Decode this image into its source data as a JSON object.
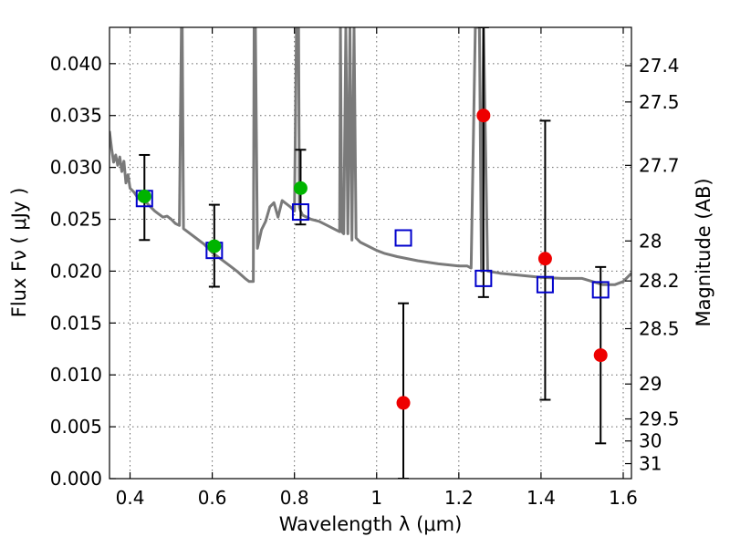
{
  "chart_data": {
    "type": "scatter",
    "title": "",
    "xlabel": "Wavelength  λ (μm)",
    "ylabel": "Flux  Fν  ( μJy )",
    "y2label": "Magnitude (AB)",
    "xlim": [
      0.35,
      1.62
    ],
    "ylim": [
      0.0,
      0.0435
    ],
    "grid": true,
    "x_ticks": [
      0.4,
      0.6,
      0.8,
      1,
      1.2,
      1.4,
      1.6
    ],
    "x_tick_labels": [
      "0.4",
      "0.6",
      "0.8",
      "1",
      "1.2",
      "1.4",
      "1.6"
    ],
    "y_ticks": [
      0.0,
      0.005,
      0.01,
      0.015,
      0.02,
      0.025,
      0.03,
      0.035,
      0.04
    ],
    "y_tick_labels": [
      "0.000",
      "0.005",
      "0.010",
      "0.015",
      "0.020",
      "0.025",
      "0.030",
      "0.035",
      "0.040"
    ],
    "y2_ticks": [
      27.4,
      27.5,
      27.7,
      28,
      28.2,
      28.5,
      29,
      29.5,
      30,
      31
    ],
    "y2_tick_labels": [
      "27.4",
      "27.5",
      "27.7",
      "28",
      "28.2",
      "28.5",
      "29",
      "29.5",
      "30",
      "31"
    ],
    "colors": {
      "template": "#7a7a7a",
      "model": "#0000cc",
      "optical": "#00b400",
      "nir": "#ee0000",
      "errorbar": "#000000"
    },
    "series": [
      {
        "kind": "line",
        "x": [
          0.35,
          0.355,
          0.36,
          0.365,
          0.37,
          0.375,
          0.38,
          0.385,
          0.39,
          0.395,
          0.4,
          0.41,
          0.42,
          0.43,
          0.44,
          0.45,
          0.46,
          0.47,
          0.48,
          0.49,
          0.5,
          0.51,
          0.52,
          0.525,
          0.527,
          0.53,
          0.54,
          0.56,
          0.58,
          0.6,
          0.62,
          0.64,
          0.66,
          0.68,
          0.69,
          0.7,
          0.702,
          0.705,
          0.71,
          0.72,
          0.73,
          0.74,
          0.75,
          0.76,
          0.77,
          0.78,
          0.79,
          0.8,
          0.805,
          0.81,
          0.812,
          0.815,
          0.82,
          0.84,
          0.86,
          0.88,
          0.9,
          0.91,
          0.912,
          0.915,
          0.92,
          0.925,
          0.93,
          0.935,
          0.94,
          0.945,
          0.95,
          0.96,
          0.98,
          1.0,
          1.02,
          1.05,
          1.1,
          1.15,
          1.2,
          1.22,
          1.23,
          1.24,
          1.25,
          1.255,
          1.26,
          1.27,
          1.3,
          1.35,
          1.4,
          1.45,
          1.5,
          1.55,
          1.58,
          1.6,
          1.62
        ],
        "y": [
          0.0335,
          0.0318,
          0.0305,
          0.0312,
          0.0302,
          0.031,
          0.0296,
          0.0306,
          0.0285,
          0.0293,
          0.028,
          0.0276,
          0.027,
          0.0268,
          0.0266,
          0.0262,
          0.0258,
          0.0255,
          0.0252,
          0.0253,
          0.025,
          0.0246,
          0.0244,
          0.0435,
          0.0435,
          0.0241,
          0.0238,
          0.0232,
          0.0226,
          0.0218,
          0.0212,
          0.0206,
          0.02,
          0.0193,
          0.019,
          0.019,
          0.0435,
          0.0435,
          0.0222,
          0.024,
          0.0248,
          0.0262,
          0.0266,
          0.0252,
          0.0268,
          0.0265,
          0.0262,
          0.0258,
          0.0435,
          0.0435,
          0.0262,
          0.0258,
          0.0254,
          0.025,
          0.0248,
          0.0244,
          0.024,
          0.0238,
          0.0435,
          0.0238,
          0.0236,
          0.0435,
          0.0236,
          0.0435,
          0.023,
          0.0435,
          0.0232,
          0.0228,
          0.0224,
          0.022,
          0.0217,
          0.0214,
          0.021,
          0.0207,
          0.0205,
          0.0205,
          0.0203,
          0.0435,
          0.0435,
          0.02,
          0.0435,
          0.02,
          0.0198,
          0.0196,
          0.0194,
          0.0193,
          0.0193,
          0.0187,
          0.0187,
          0.019,
          0.0198
        ]
      },
      {
        "kind": "model-squares",
        "x": [
          0.435,
          0.605,
          0.815,
          1.065,
          1.26,
          1.41,
          1.545
        ],
        "y": [
          0.027,
          0.022,
          0.0257,
          0.0232,
          0.0193,
          0.0187,
          0.0182
        ]
      },
      {
        "kind": "optical-points",
        "x": [
          0.435,
          0.605,
          0.815
        ],
        "y": [
          0.0272,
          0.0224,
          0.028
        ],
        "err_lo": [
          0.023,
          0.0185,
          0.0245
        ],
        "err_hi": [
          0.0312,
          0.0264,
          0.0317
        ]
      },
      {
        "kind": "nir-points",
        "x": [
          1.065,
          1.26,
          1.41,
          1.545
        ],
        "y": [
          0.0073,
          0.035,
          0.0212,
          0.0119
        ],
        "err_lo": [
          0.0,
          0.0175,
          0.0076,
          0.0034
        ],
        "err_hi": [
          0.0169,
          0.0435,
          0.0345,
          0.0204
        ]
      }
    ]
  }
}
